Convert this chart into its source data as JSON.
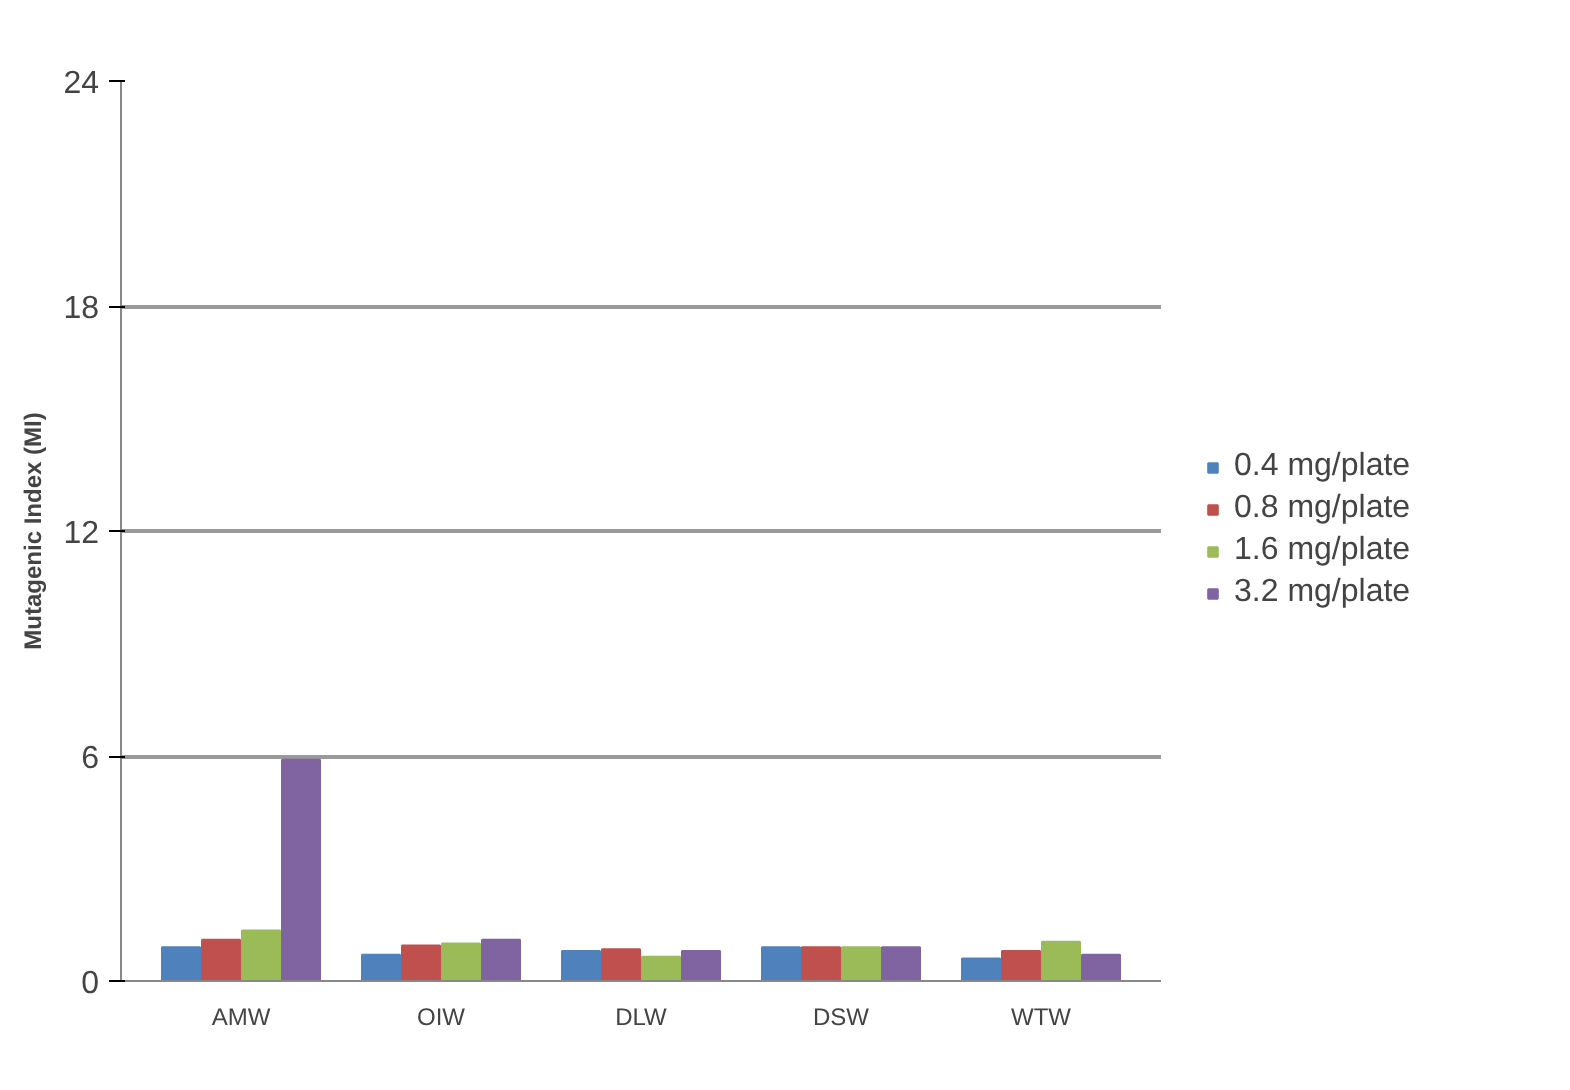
{
  "chart_data": {
    "type": "bar",
    "ylabel": "Mutagenic Index (MI)",
    "categories": [
      "AMW",
      "OIW",
      "DLW",
      "DSW",
      "WTW"
    ],
    "series": [
      {
        "name": "0.4 mg/plate",
        "color": "#4f81bd",
        "values": [
          0.9,
          0.7,
          0.8,
          0.9,
          0.6
        ]
      },
      {
        "name": "0.8 mg/plate",
        "color": "#c0504d",
        "values": [
          1.1,
          0.95,
          0.85,
          0.9,
          0.8
        ]
      },
      {
        "name": "1.6 mg/plate",
        "color": "#9bbb59",
        "values": [
          1.35,
          1.0,
          0.65,
          0.9,
          1.05
        ]
      },
      {
        "name": "3.2 mg/plate",
        "color": "#8064a2",
        "values": [
          5.9,
          1.1,
          0.8,
          0.9,
          0.7
        ]
      }
    ],
    "ylim": [
      0,
      24
    ],
    "yticks": [
      0,
      6,
      12,
      18,
      24
    ],
    "grid": "y",
    "legend": "right"
  }
}
